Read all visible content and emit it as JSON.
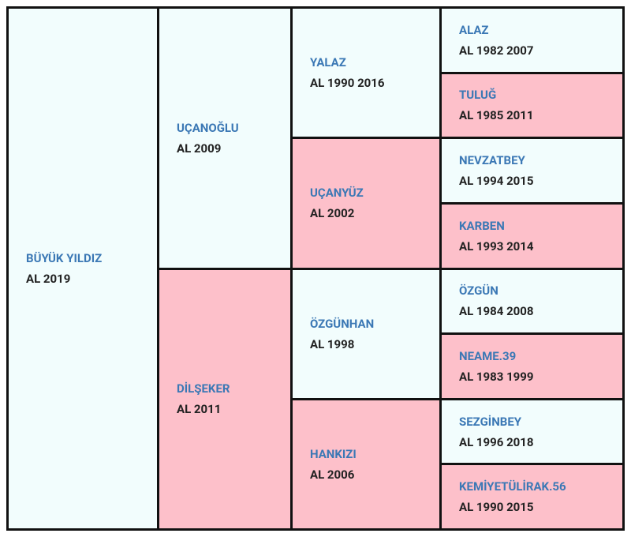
{
  "nodes": [
    {
      "name": "BÜYÜK YILDIZ",
      "info": "AL 2019"
    },
    {
      "name": "UÇANOĞLU",
      "info": "AL 2009"
    },
    {
      "name": "YALAZ",
      "info": "AL 1990 2016"
    },
    {
      "name": "ALAZ",
      "info": "AL 1982 2007"
    },
    {
      "name": "TULUĞ",
      "info": "AL 1985 2011"
    },
    {
      "name": "UÇANYÜZ",
      "info": "AL 2002"
    },
    {
      "name": "NEVZATBEY",
      "info": "AL 1994 2015"
    },
    {
      "name": "KARBEN",
      "info": "AL 1993 2014"
    },
    {
      "name": "DİLŞEKER",
      "info": "AL 2011"
    },
    {
      "name": "ÖZGÜNHAN",
      "info": "AL 1998"
    },
    {
      "name": "ÖZGÜN",
      "info": "AL 1984 2008"
    },
    {
      "name": "NEAME.39",
      "info": "AL 1983 1999"
    },
    {
      "name": "HANKIZI",
      "info": "AL 2006"
    },
    {
      "name": "SEZGİNBEY",
      "info": "AL 1996 2018"
    },
    {
      "name": "KEMİYETÜLİRAK.56",
      "info": "AL 1990 2015"
    }
  ]
}
